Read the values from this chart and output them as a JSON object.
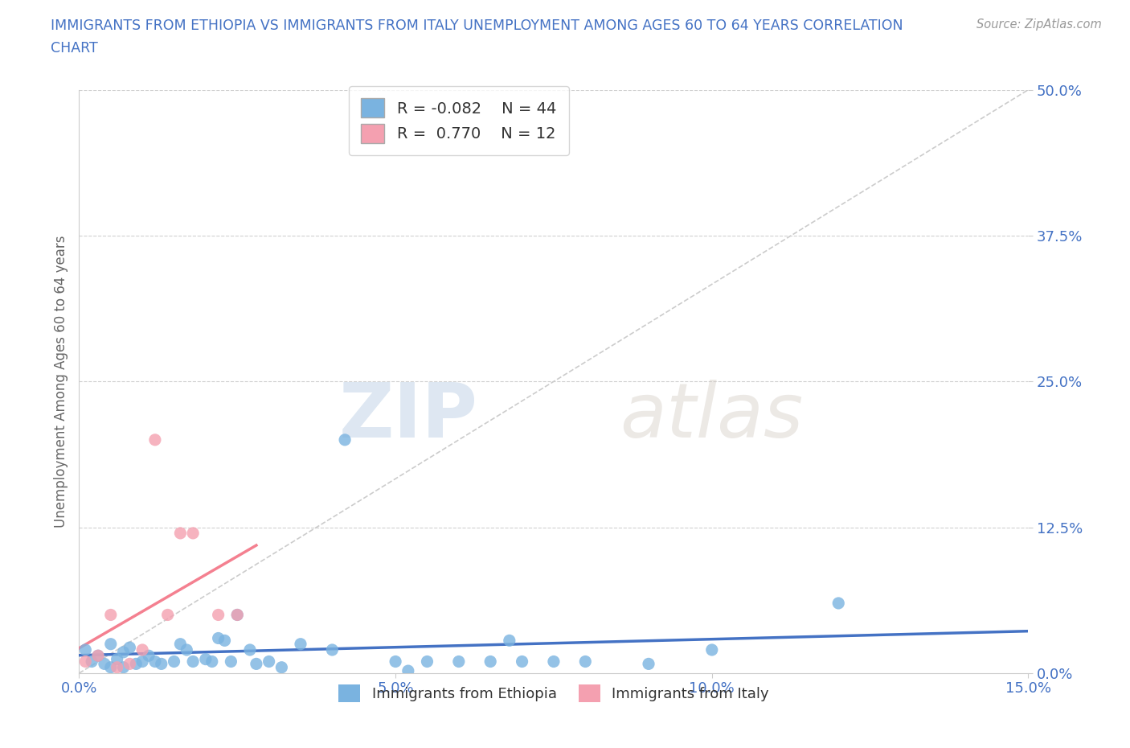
{
  "title_line1": "IMMIGRANTS FROM ETHIOPIA VS IMMIGRANTS FROM ITALY UNEMPLOYMENT AMONG AGES 60 TO 64 YEARS CORRELATION",
  "title_line2": "CHART",
  "source": "Source: ZipAtlas.com",
  "ylabel": "Unemployment Among Ages 60 to 64 years",
  "xlim": [
    0.0,
    0.15
  ],
  "ylim": [
    0.0,
    0.5
  ],
  "xticks": [
    0.0,
    0.05,
    0.1,
    0.15
  ],
  "xticklabels": [
    "0.0%",
    "5.0%",
    "10.0%",
    "15.0%"
  ],
  "yticks": [
    0.0,
    0.125,
    0.25,
    0.375,
    0.5
  ],
  "yticklabels": [
    "0.0%",
    "12.5%",
    "25.0%",
    "37.5%",
    "50.0%"
  ],
  "ethiopia_color": "#7ab3e0",
  "italy_color": "#f4a0b0",
  "ethiopia_line_color": "#4472c4",
  "italy_line_color": "#f48090",
  "ethiopia_R": -0.082,
  "ethiopia_N": 44,
  "italy_R": 0.77,
  "italy_N": 12,
  "legend_label1": "Immigrants from Ethiopia",
  "legend_label2": "Immigrants from Italy",
  "watermark_zip": "ZIP",
  "watermark_atlas": "atlas",
  "ethiopia_x": [
    0.001,
    0.002,
    0.003,
    0.004,
    0.005,
    0.005,
    0.006,
    0.007,
    0.007,
    0.008,
    0.009,
    0.01,
    0.011,
    0.012,
    0.013,
    0.015,
    0.016,
    0.017,
    0.018,
    0.02,
    0.021,
    0.022,
    0.023,
    0.024,
    0.025,
    0.027,
    0.028,
    0.03,
    0.032,
    0.035,
    0.04,
    0.042,
    0.05,
    0.052,
    0.055,
    0.06,
    0.065,
    0.068,
    0.07,
    0.075,
    0.08,
    0.09,
    0.1,
    0.12
  ],
  "ethiopia_y": [
    0.02,
    0.01,
    0.015,
    0.008,
    0.005,
    0.025,
    0.012,
    0.018,
    0.005,
    0.022,
    0.008,
    0.01,
    0.015,
    0.01,
    0.008,
    0.01,
    0.025,
    0.02,
    0.01,
    0.012,
    0.01,
    0.03,
    0.028,
    0.01,
    0.05,
    0.02,
    0.008,
    0.01,
    0.005,
    0.025,
    0.02,
    0.2,
    0.01,
    0.002,
    0.01,
    0.01,
    0.01,
    0.028,
    0.01,
    0.01,
    0.01,
    0.008,
    0.02,
    0.06
  ],
  "italy_x": [
    0.001,
    0.003,
    0.005,
    0.006,
    0.008,
    0.01,
    0.012,
    0.014,
    0.016,
    0.018,
    0.022,
    0.025
  ],
  "italy_y": [
    0.01,
    0.015,
    0.05,
    0.005,
    0.008,
    0.02,
    0.2,
    0.05,
    0.12,
    0.12,
    0.05,
    0.05
  ],
  "background_color": "#ffffff",
  "grid_color": "#d0d0d0",
  "title_color": "#4472c4",
  "axis_label_color": "#666666",
  "tick_color": "#4472c4",
  "right_tick_color": "#4472c4"
}
